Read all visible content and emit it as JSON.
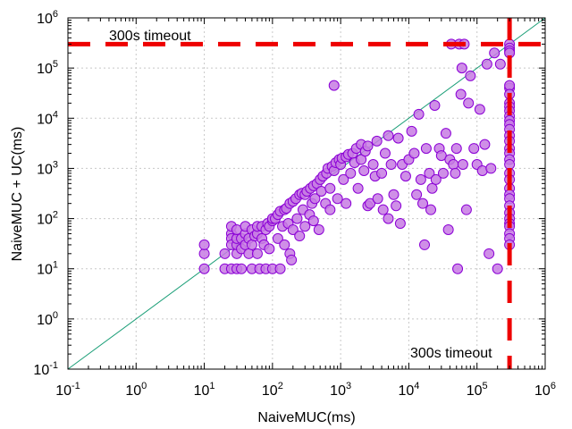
{
  "chart_data": {
    "type": "scatter",
    "title": "",
    "xlabel": "NaiveMUC(ms)",
    "ylabel": "NaiveMUC + UC(ms)",
    "xscale": "log",
    "yscale": "log",
    "xlim": [
      0.1,
      1000000
    ],
    "ylim": [
      0.1,
      1000000
    ],
    "grid": true,
    "legend": "none",
    "ticks": [
      {
        "value": 0.1,
        "base": "10",
        "exp": "-1"
      },
      {
        "value": 1,
        "base": "10",
        "exp": "0"
      },
      {
        "value": 10,
        "base": "10",
        "exp": "1"
      },
      {
        "value": 100,
        "base": "10",
        "exp": "2"
      },
      {
        "value": 1000,
        "base": "10",
        "exp": "3"
      },
      {
        "value": 10000,
        "base": "10",
        "exp": "4"
      },
      {
        "value": 100000,
        "base": "10",
        "exp": "5"
      },
      {
        "value": 1000000,
        "base": "10",
        "exp": "6"
      }
    ],
    "timeout_value": 300000,
    "timeout_label_top": "300s timeout",
    "timeout_label_bottom": "300s timeout",
    "colors": {
      "point_fill": "#c77be3",
      "point_stroke": "#8b00d6",
      "diagonal": "#1a9e77",
      "timeout": "#ee0000",
      "grid": "#c8c8c8"
    },
    "points": [
      [
        10,
        10
      ],
      [
        10,
        20
      ],
      [
        10,
        30
      ],
      [
        20,
        10
      ],
      [
        20,
        20
      ],
      [
        25,
        50
      ],
      [
        25,
        70
      ],
      [
        25,
        40
      ],
      [
        25,
        30
      ],
      [
        25,
        10
      ],
      [
        30,
        10
      ],
      [
        30,
        20
      ],
      [
        30,
        30
      ],
      [
        30,
        40
      ],
      [
        30,
        60
      ],
      [
        35,
        10
      ],
      [
        35,
        25
      ],
      [
        35,
        40
      ],
      [
        40,
        30
      ],
      [
        40,
        50
      ],
      [
        40,
        70
      ],
      [
        45,
        20
      ],
      [
        45,
        40
      ],
      [
        50,
        10
      ],
      [
        50,
        30
      ],
      [
        50,
        60
      ],
      [
        55,
        45
      ],
      [
        60,
        50
      ],
      [
        60,
        70
      ],
      [
        60,
        20
      ],
      [
        65,
        10
      ],
      [
        70,
        40
      ],
      [
        70,
        70
      ],
      [
        75,
        30
      ],
      [
        80,
        60
      ],
      [
        80,
        10
      ],
      [
        85,
        80
      ],
      [
        90,
        70
      ],
      [
        90,
        25
      ],
      [
        100,
        10
      ],
      [
        100,
        90
      ],
      [
        100,
        100
      ],
      [
        110,
        100
      ],
      [
        120,
        40
      ],
      [
        120,
        120
      ],
      [
        130,
        10
      ],
      [
        130,
        140
      ],
      [
        140,
        70
      ],
      [
        150,
        150
      ],
      [
        150,
        30
      ],
      [
        160,
        160
      ],
      [
        170,
        80
      ],
      [
        180,
        200
      ],
      [
        180,
        20
      ],
      [
        190,
        15
      ],
      [
        200,
        220
      ],
      [
        200,
        60
      ],
      [
        220,
        250
      ],
      [
        230,
        100
      ],
      [
        250,
        300
      ],
      [
        250,
        45
      ],
      [
        270,
        320
      ],
      [
        280,
        150
      ],
      [
        300,
        300
      ],
      [
        300,
        70
      ],
      [
        320,
        350
      ],
      [
        350,
        120
      ],
      [
        360,
        400
      ],
      [
        380,
        200
      ],
      [
        400,
        450
      ],
      [
        400,
        90
      ],
      [
        420,
        250
      ],
      [
        450,
        500
      ],
      [
        480,
        60
      ],
      [
        500,
        600
      ],
      [
        520,
        350
      ],
      [
        550,
        700
      ],
      [
        600,
        200
      ],
      [
        620,
        800
      ],
      [
        650,
        1000
      ],
      [
        700,
        400
      ],
      [
        700,
        150
      ],
      [
        750,
        1100
      ],
      [
        800,
        45000
      ],
      [
        800,
        900
      ],
      [
        850,
        1300
      ],
      [
        900,
        250
      ],
      [
        950,
        1500
      ],
      [
        1000,
        1200
      ],
      [
        1050,
        1600
      ],
      [
        1100,
        600
      ],
      [
        1200,
        200
      ],
      [
        1200,
        1700
      ],
      [
        1300,
        1900
      ],
      [
        1400,
        800
      ],
      [
        1500,
        2000
      ],
      [
        1600,
        1300
      ],
      [
        1700,
        2500
      ],
      [
        1800,
        400
      ],
      [
        2000,
        1500
      ],
      [
        2000,
        3000
      ],
      [
        2200,
        900
      ],
      [
        2300,
        2200
      ],
      [
        2500,
        180
      ],
      [
        2500,
        2800
      ],
      [
        2700,
        200
      ],
      [
        3000,
        1200
      ],
      [
        3200,
        700
      ],
      [
        3400,
        3500
      ],
      [
        3500,
        250
      ],
      [
        4000,
        800
      ],
      [
        4200,
        150
      ],
      [
        4500,
        2000
      ],
      [
        5000,
        100
      ],
      [
        5000,
        4500
      ],
      [
        5500,
        1200
      ],
      [
        6000,
        300
      ],
      [
        6500,
        180
      ],
      [
        7000,
        4000
      ],
      [
        7500,
        80
      ],
      [
        8000,
        1200
      ],
      [
        9000,
        700
      ],
      [
        10000,
        1500
      ],
      [
        11000,
        5500
      ],
      [
        12000,
        2000
      ],
      [
        13000,
        300
      ],
      [
        14000,
        12000
      ],
      [
        15000,
        600
      ],
      [
        16000,
        200
      ],
      [
        17000,
        30
      ],
      [
        18000,
        2500
      ],
      [
        20000,
        800
      ],
      [
        21000,
        150
      ],
      [
        22000,
        400
      ],
      [
        24000,
        18000
      ],
      [
        25000,
        600
      ],
      [
        28000,
        2500
      ],
      [
        30000,
        1800
      ],
      [
        32000,
        800
      ],
      [
        35000,
        5000
      ],
      [
        38000,
        60
      ],
      [
        40000,
        1500
      ],
      [
        42000,
        300000
      ],
      [
        45000,
        1200
      ],
      [
        48000,
        800
      ],
      [
        50000,
        2500
      ],
      [
        52000,
        10
      ],
      [
        55000,
        300000
      ],
      [
        58000,
        30000
      ],
      [
        60000,
        100000
      ],
      [
        62000,
        1200
      ],
      [
        65000,
        300000
      ],
      [
        70000,
        150
      ],
      [
        75000,
        20000
      ],
      [
        80000,
        70000
      ],
      [
        90000,
        2500
      ],
      [
        100000,
        1200
      ],
      [
        110000,
        15000
      ],
      [
        120000,
        900
      ],
      [
        130000,
        3000
      ],
      [
        140000,
        120000
      ],
      [
        150000,
        20
      ],
      [
        160000,
        1000
      ],
      [
        180000,
        200000
      ],
      [
        200000,
        10
      ],
      [
        220000,
        120000
      ],
      [
        300000,
        300000
      ],
      [
        300000,
        250000
      ],
      [
        300000,
        220000
      ],
      [
        300000,
        200000
      ],
      [
        300000,
        40000
      ],
      [
        300000,
        45000
      ],
      [
        300000,
        30000
      ],
      [
        300000,
        20000
      ],
      [
        300000,
        17000
      ],
      [
        300000,
        14000
      ],
      [
        300000,
        11000
      ],
      [
        300000,
        9000
      ],
      [
        300000,
        7500
      ],
      [
        300000,
        6000
      ],
      [
        300000,
        4500
      ],
      [
        300000,
        3500
      ],
      [
        300000,
        2500
      ],
      [
        300000,
        2000
      ],
      [
        300000,
        1500
      ],
      [
        300000,
        1200
      ],
      [
        300000,
        800
      ],
      [
        300000,
        600
      ],
      [
        300000,
        400
      ],
      [
        300000,
        300
      ],
      [
        300000,
        250
      ],
      [
        300000,
        180
      ],
      [
        300000,
        130
      ],
      [
        300000,
        100
      ],
      [
        300000,
        80
      ],
      [
        300000,
        70
      ],
      [
        300000,
        50
      ],
      [
        300000,
        40
      ],
      [
        300000,
        30
      ]
    ]
  }
}
